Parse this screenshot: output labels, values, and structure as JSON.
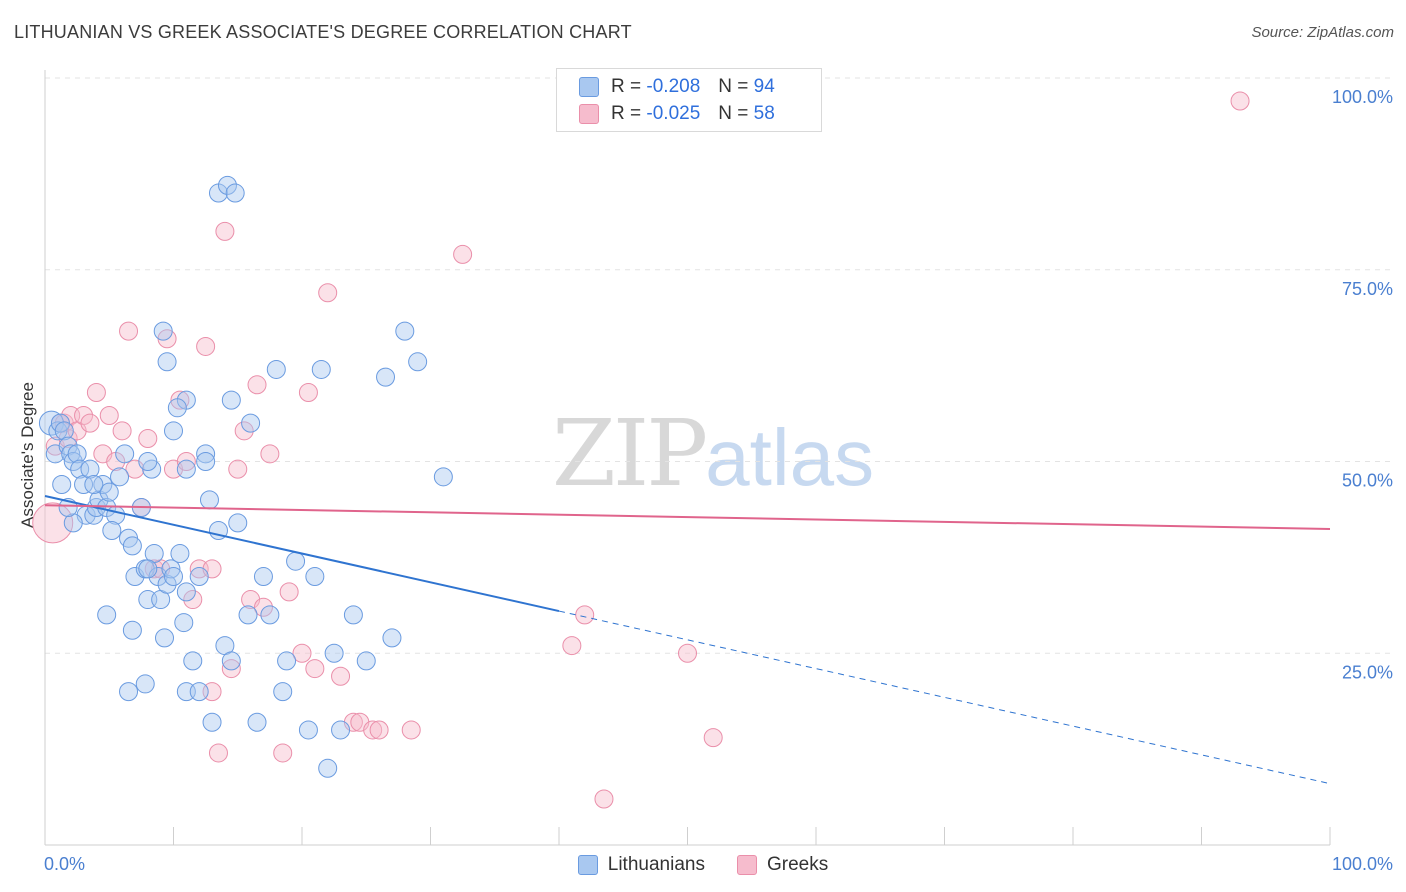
{
  "title": "LITHUANIAN VS GREEK ASSOCIATE'S DEGREE CORRELATION CHART",
  "source": "Source: ZipAtlas.com",
  "watermark": {
    "zip": "ZIP",
    "atlas": "atlas"
  },
  "stats": [
    {
      "r_label": "R =",
      "r_value": "-0.208",
      "n_label": "N =",
      "n_value": "94"
    },
    {
      "r_label": "R =",
      "r_value": "-0.025",
      "n_label": "N =",
      "n_value": "58"
    }
  ],
  "legend": [
    {
      "label": "Lithuanians"
    },
    {
      "label": "Greeks"
    }
  ],
  "colors": {
    "blue_fill": "#a9c8f0",
    "blue_stroke": "#6a9be0",
    "blue_line": "#2f74d0",
    "pink_fill": "#f6bccd",
    "pink_stroke": "#ea8faa",
    "pink_line": "#e0648c",
    "grid": "#e3e3e3",
    "axis": "#cfcfcf"
  },
  "chart_data": {
    "type": "scatter",
    "title": "LITHUANIAN VS GREEK ASSOCIATE'S DEGREE CORRELATION CHART",
    "xlabel": "",
    "ylabel": "Associate's Degree",
    "xlim": [
      0,
      100
    ],
    "ylim": [
      0,
      100
    ],
    "x_tick_labels": [
      "0.0%",
      "100.0%"
    ],
    "y_ticks": [
      25,
      50,
      75,
      100
    ],
    "y_tick_labels": [
      "25.0%",
      "50.0%",
      "75.0%",
      "100.0%"
    ],
    "series": [
      {
        "name": "Lithuanians",
        "r": -0.208,
        "n": 94,
        "trend": {
          "x0": 0,
          "y0": 45.5,
          "x1": 40,
          "y1": 30.5,
          "dash_to_x": 100,
          "dash_to_y": 8
        },
        "points": [
          [
            0.5,
            55
          ],
          [
            0.8,
            51
          ],
          [
            1.0,
            54
          ],
          [
            1.2,
            55
          ],
          [
            1.5,
            54
          ],
          [
            1.8,
            52
          ],
          [
            2.0,
            51
          ],
          [
            2.2,
            50
          ],
          [
            2.5,
            51
          ],
          [
            2.7,
            49
          ],
          [
            3.0,
            47
          ],
          [
            3.2,
            43
          ],
          [
            3.5,
            49
          ],
          [
            3.8,
            43
          ],
          [
            4.0,
            44
          ],
          [
            4.2,
            45
          ],
          [
            4.5,
            47
          ],
          [
            4.8,
            44
          ],
          [
            5.0,
            46
          ],
          [
            5.5,
            43
          ],
          [
            5.8,
            48
          ],
          [
            6.2,
            51
          ],
          [
            6.5,
            40
          ],
          [
            6.8,
            39
          ],
          [
            7.0,
            35
          ],
          [
            7.5,
            44
          ],
          [
            7.8,
            36
          ],
          [
            8.0,
            32
          ],
          [
            8.3,
            49
          ],
          [
            8.5,
            38
          ],
          [
            8.8,
            35
          ],
          [
            9.0,
            32
          ],
          [
            9.3,
            27
          ],
          [
            9.5,
            34
          ],
          [
            9.8,
            36
          ],
          [
            10.0,
            35
          ],
          [
            10.5,
            38
          ],
          [
            10.8,
            29
          ],
          [
            11.0,
            33
          ],
          [
            11.5,
            24
          ],
          [
            12.0,
            35
          ],
          [
            12.5,
            51
          ],
          [
            12.8,
            45
          ],
          [
            13.5,
            41
          ],
          [
            14.0,
            26
          ],
          [
            14.5,
            24
          ],
          [
            15.0,
            42
          ],
          [
            16.5,
            16
          ],
          [
            17.0,
            35
          ],
          [
            17.5,
            30
          ],
          [
            18.0,
            62
          ],
          [
            18.5,
            20
          ],
          [
            18.8,
            24
          ],
          [
            19.5,
            37
          ],
          [
            20.5,
            15
          ],
          [
            21.0,
            35
          ],
          [
            22.0,
            10
          ],
          [
            22.5,
            25
          ],
          [
            23.0,
            15
          ],
          [
            24.0,
            30
          ],
          [
            25.0,
            24
          ],
          [
            27.0,
            27
          ],
          [
            28.0,
            67
          ],
          [
            29.0,
            63
          ],
          [
            31.0,
            48
          ],
          [
            11.0,
            58
          ],
          [
            4.8,
            30
          ],
          [
            6.8,
            28
          ],
          [
            6.5,
            20
          ],
          [
            7.8,
            21
          ],
          [
            8.0,
            36
          ],
          [
            11.0,
            20
          ],
          [
            12.0,
            20
          ],
          [
            14.5,
            58
          ],
          [
            16.0,
            55
          ],
          [
            21.5,
            62
          ],
          [
            26.5,
            61
          ],
          [
            13.5,
            85
          ],
          [
            14.2,
            86
          ],
          [
            14.8,
            85
          ],
          [
            9.2,
            67
          ],
          [
            9.5,
            63
          ],
          [
            10.3,
            57
          ],
          [
            12.5,
            50
          ],
          [
            15.8,
            30
          ],
          [
            13.0,
            16
          ],
          [
            2.2,
            42
          ],
          [
            1.3,
            47
          ],
          [
            3.8,
            47
          ],
          [
            5.2,
            41
          ],
          [
            8.0,
            50
          ],
          [
            10.0,
            54
          ],
          [
            11.0,
            49
          ],
          [
            1.8,
            44
          ]
        ]
      },
      {
        "name": "Greeks",
        "r": -0.025,
        "n": 58,
        "trend": {
          "x0": 0,
          "y0": 44.3,
          "x1": 100,
          "y1": 41.2
        },
        "points": [
          [
            0.6,
            42
          ],
          [
            0.8,
            52
          ],
          [
            1.2,
            55
          ],
          [
            1.5,
            55
          ],
          [
            1.8,
            53
          ],
          [
            2.0,
            56
          ],
          [
            2.5,
            54
          ],
          [
            3.0,
            56
          ],
          [
            3.5,
            55
          ],
          [
            4.0,
            59
          ],
          [
            4.5,
            51
          ],
          [
            5.0,
            56
          ],
          [
            5.5,
            50
          ],
          [
            6.0,
            54
          ],
          [
            6.5,
            67
          ],
          [
            7.0,
            49
          ],
          [
            7.5,
            44
          ],
          [
            8.0,
            53
          ],
          [
            8.5,
            36
          ],
          [
            9.0,
            36
          ],
          [
            9.5,
            66
          ],
          [
            10.0,
            49
          ],
          [
            10.5,
            58
          ],
          [
            11.0,
            50
          ],
          [
            11.5,
            32
          ],
          [
            12.0,
            36
          ],
          [
            12.5,
            65
          ],
          [
            13.0,
            20
          ],
          [
            13.5,
            12
          ],
          [
            14.0,
            80
          ],
          [
            14.5,
            23
          ],
          [
            15.0,
            49
          ],
          [
            15.5,
            54
          ],
          [
            16.0,
            32
          ],
          [
            16.5,
            60
          ],
          [
            17.0,
            31
          ],
          [
            17.5,
            51
          ],
          [
            18.5,
            12
          ],
          [
            19.0,
            33
          ],
          [
            20.0,
            25
          ],
          [
            20.5,
            59
          ],
          [
            21.0,
            23
          ],
          [
            22.0,
            72
          ],
          [
            23.0,
            22
          ],
          [
            24.0,
            16
          ],
          [
            24.5,
            16
          ],
          [
            25.5,
            15
          ],
          [
            26.0,
            15
          ],
          [
            28.5,
            15
          ],
          [
            32.5,
            77
          ],
          [
            41.0,
            26
          ],
          [
            42.0,
            30
          ],
          [
            43.5,
            6
          ],
          [
            50.0,
            25
          ],
          [
            52.0,
            14
          ],
          [
            55.0,
            100
          ],
          [
            93.0,
            97
          ],
          [
            13.0,
            36
          ]
        ]
      }
    ]
  }
}
